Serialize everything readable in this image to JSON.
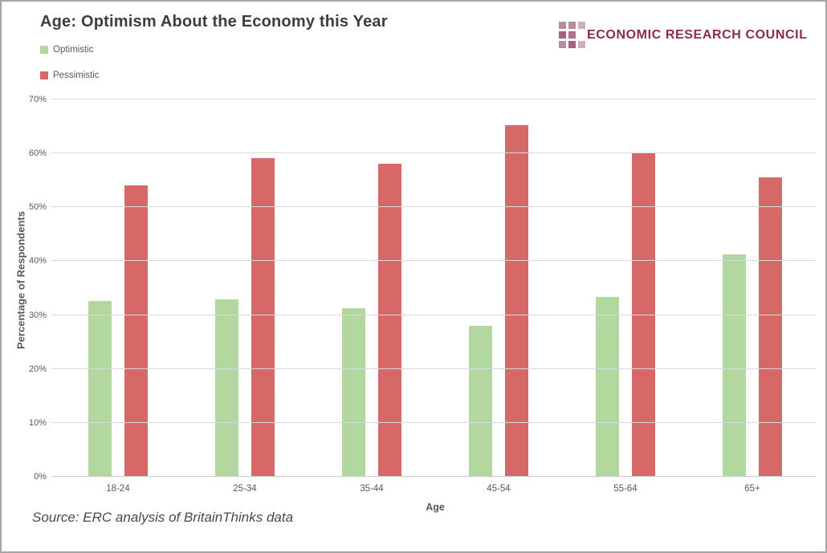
{
  "header": {
    "title": "Age: Optimism About the Economy this Year",
    "logo": {
      "text": "ECONOMIC RESEARCH COUNCIL",
      "text_color": "#8c2a52",
      "square_rows": [
        [
          "#b68c9e",
          "#b68c9e",
          "#cfaebb"
        ],
        [
          "#a4627c",
          "#ab7389",
          ""
        ],
        [
          "#b68c9e",
          "#a4627c",
          "#cfaebb"
        ]
      ]
    }
  },
  "chart_data": {
    "type": "bar",
    "title": "Age: Optimism About the Economy this Year",
    "categories": [
      "18-24",
      "25-34",
      "35-44",
      "45-54",
      "55-64",
      "65+"
    ],
    "series": [
      {
        "name": "Optimistic",
        "color": "#b2d8a0",
        "values": [
          32.6,
          32.9,
          31.3,
          28.0,
          33.4,
          41.2
        ]
      },
      {
        "name": "Pessimistic",
        "color": "#d66868",
        "values": [
          54.0,
          59.2,
          58.1,
          65.3,
          60.0,
          55.5
        ]
      }
    ],
    "xlabel": "Age",
    "ylabel": "Percentage of Respondents",
    "ylim": [
      0,
      70
    ],
    "ytick_step": 10,
    "ytick_suffix": "%",
    "grid": true,
    "legend_position": "top-left"
  },
  "footer": {
    "source": "Source: ERC analysis of BritainThinks data"
  },
  "colors": {
    "gridline": "#d9d9d9",
    "axis_line": "#c6c6c6",
    "tick_text": "#595959",
    "title_text": "#3d3d3d"
  }
}
